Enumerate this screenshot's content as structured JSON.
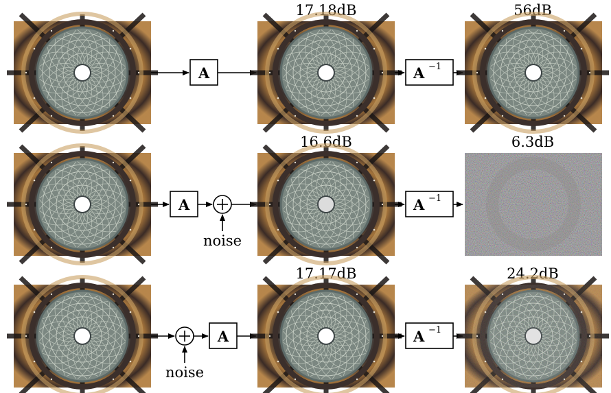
{
  "rows": [
    {
      "mid_psnr": "17.18dB",
      "out_psnr": "56dB",
      "first_op": "A",
      "second_op": "A",
      "noise_label": "",
      "output_style": "clean"
    },
    {
      "mid_psnr": "16.6dB",
      "out_psnr": "6.3dB",
      "first_op": "A",
      "second_op": "+",
      "noise_label": "noise",
      "output_style": "noisy"
    },
    {
      "mid_psnr": "17.17dB",
      "out_psnr": "24.2dB",
      "first_op": "+",
      "second_op": "A",
      "noise_label": "noise",
      "output_style": "slightly-noisy"
    }
  ],
  "inverse_op": {
    "base": "A",
    "exponent": "−1"
  },
  "image_description_names": [
    "dome-ceiling-image"
  ],
  "colors": {
    "dome_gold": "#b98a4a",
    "dome_dark": "#2a2426",
    "lattice": "#c9d0c7",
    "ring": "#6f7c7b",
    "oculus": "#ffffff",
    "noise_bg": "#7c7a80"
  }
}
